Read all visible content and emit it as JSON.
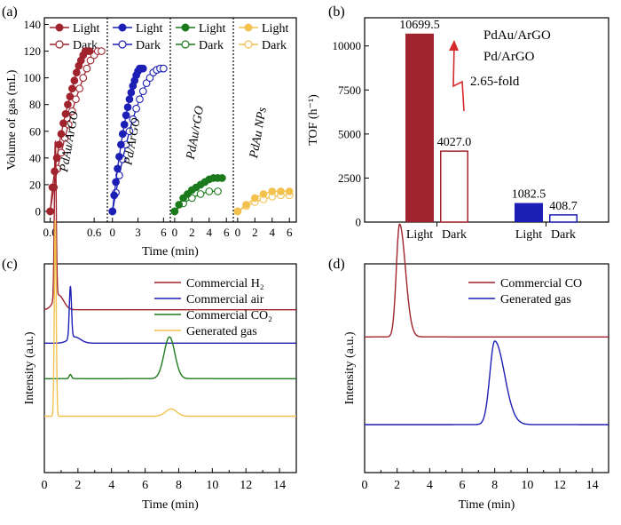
{
  "chart_data": [
    {
      "id": "a",
      "type": "scatter",
      "panel_label": "(a)",
      "ylabel": "Volume of gas (mL)",
      "xlabel": "Time (min)",
      "ylim": [
        -8,
        145
      ],
      "yticks": [
        0,
        20,
        40,
        60,
        80,
        100,
        120,
        140
      ],
      "subpanels": [
        {
          "name": "PdAu/ArGO",
          "xlim": [
            -0.08,
            0.78
          ],
          "xticks": [
            0.0,
            0.6
          ],
          "xtick_labels": [
            "0.0",
            "0.6"
          ],
          "color": "#a0232d",
          "legend": [
            "Light",
            "Dark"
          ],
          "light": {
            "x": [
              0,
              0.03,
              0.06,
              0.09,
              0.12,
              0.15,
              0.18,
              0.21,
              0.24,
              0.27,
              0.3,
              0.33,
              0.36,
              0.39,
              0.42,
              0.45,
              0.48,
              0.51,
              0.54
            ],
            "y": [
              0,
              18,
              30,
              40,
              50,
              58,
              66,
              73,
              80,
              86,
              92,
              98,
              104,
              109,
              113,
              117,
              120,
              120,
              120
            ]
          },
          "dark": {
            "x": [
              0,
              0.05,
              0.1,
              0.15,
              0.2,
              0.25,
              0.3,
              0.35,
              0.4,
              0.45,
              0.5,
              0.55,
              0.6,
              0.65,
              0.7
            ],
            "y": [
              0,
              18,
              32,
              44,
              55,
              65,
              75,
              84,
              92,
              100,
              107,
              113,
              117,
              120,
              120
            ]
          }
        },
        {
          "name": "Pd/ArGO",
          "xlim": [
            -0.6,
            6.8
          ],
          "xticks": [
            0,
            3,
            6
          ],
          "xtick_labels": [
            "0",
            "3",
            "6"
          ],
          "color": "#1c1fb5",
          "legend": [
            "Light",
            "Dark"
          ],
          "light": {
            "x": [
              0,
              0.2,
              0.4,
              0.6,
              0.8,
              1.0,
              1.2,
              1.4,
              1.6,
              1.8,
              2.0,
              2.2,
              2.4,
              2.6,
              2.8,
              3.0,
              3.2,
              3.4,
              3.6
            ],
            "y": [
              0,
              12,
              22,
              32,
              41,
              50,
              58,
              65,
              72,
              78,
              84,
              89,
              94,
              98,
              102,
              105,
              107,
              107,
              107
            ]
          },
          "dark": {
            "x": [
              0,
              0.4,
              0.8,
              1.2,
              1.6,
              2.0,
              2.4,
              2.8,
              3.2,
              3.6,
              4.0,
              4.4,
              4.8,
              5.2,
              5.6,
              6.0
            ],
            "y": [
              0,
              14,
              27,
              39,
              50,
              60,
              69,
              77,
              84,
              90,
              96,
              100,
              104,
              106,
              107,
              107
            ]
          }
        },
        {
          "name": "PdAu/rGO",
          "xlim": [
            -0.5,
            6.8
          ],
          "xticks": [
            0,
            2,
            4,
            6
          ],
          "xtick_labels": [
            "0",
            "2",
            "4",
            "6"
          ],
          "color": "#1b7a1b",
          "legend": [
            "Light",
            "Dark"
          ],
          "light": {
            "x": [
              0,
              0.5,
              1,
              1.5,
              2,
              2.5,
              3,
              3.5,
              4,
              4.5,
              5,
              5.5
            ],
            "y": [
              0,
              5,
              10,
              13,
              16,
              18,
              20,
              22,
              24,
              25,
              25,
              25
            ]
          },
          "dark": {
            "x": [
              0,
              1,
              2,
              3,
              4,
              5
            ],
            "y": [
              0,
              6,
              10,
              13,
              15,
              15
            ]
          }
        },
        {
          "name": "PdAu NPs",
          "xlim": [
            -0.5,
            6.8
          ],
          "xticks": [
            0,
            2,
            4,
            6
          ],
          "xtick_labels": [
            "0",
            "2",
            "4",
            "6"
          ],
          "color": "#f2c14e",
          "legend": [
            "Light",
            "Dark"
          ],
          "light": {
            "x": [
              0,
              1,
              2,
              3,
              4,
              5,
              6
            ],
            "y": [
              0,
              5,
              10,
              13,
              15,
              15,
              15
            ]
          },
          "dark": {
            "x": [
              0,
              1,
              2,
              3,
              4,
              5,
              6
            ],
            "y": [
              0,
              4,
              7,
              9,
              11,
              12,
              12
            ]
          }
        }
      ]
    },
    {
      "id": "b",
      "type": "bar",
      "panel_label": "(b)",
      "ylabel": "TOF (h⁻¹)",
      "ylim": [
        0,
        11600
      ],
      "yticks": [
        0,
        2500,
        5000,
        7500,
        10000
      ],
      "ytick_labels": [
        "0",
        "2500",
        "5000",
        "7500",
        "10000"
      ],
      "groups": [
        {
          "name": "PdAu/ArGO",
          "color": "#a0232d",
          "categories": [
            "Light",
            "Dark"
          ],
          "values": [
            10699.5,
            4027.0
          ],
          "labels": [
            "10699.5",
            "4027.0"
          ]
        },
        {
          "name": "Pd/ArGO",
          "color": "#1c1fb5",
          "categories": [
            "Light",
            "Dark"
          ],
          "values": [
            1082.5,
            408.7
          ],
          "labels": [
            "1082.5",
            "408.7"
          ]
        }
      ],
      "annotation": "2.65-fold"
    },
    {
      "id": "c",
      "type": "line",
      "panel_label": "(c)",
      "xlabel": "Time (min)",
      "ylabel": "Intensity (a.u.)",
      "xlim": [
        0,
        15
      ],
      "xticks": [
        0,
        2,
        4,
        6,
        8,
        10,
        12,
        14
      ],
      "series": [
        {
          "name": "Commercial H₂",
          "color": "#a0232d",
          "baseline": 0.22,
          "peaks": [
            {
              "t": 0.65,
              "h": 0.76,
              "w": 0.055
            },
            {
              "t": 0.85,
              "h": 0.07,
              "w": 0.3
            }
          ]
        },
        {
          "name": "Commercial air",
          "color": "#1c1fb5",
          "baseline": 0.38,
          "peaks": [
            {
              "t": 1.55,
              "h": 0.25,
              "w": 0.065
            },
            {
              "t": 1.8,
              "h": 0.03,
              "w": 0.35
            }
          ]
        },
        {
          "name": "Commercial CO₂",
          "color": "#1b7a1b",
          "baseline": 0.55,
          "peaks": [
            {
              "t": 1.55,
              "h": 0.02,
              "w": 0.07
            },
            {
              "t": 7.45,
              "h": 0.2,
              "w": 0.32
            }
          ]
        },
        {
          "name": "Generated gas",
          "color": "#f2c14e",
          "baseline": 0.73,
          "peaks": [
            {
              "t": 0.65,
              "h": 0.95,
              "w": 0.055
            },
            {
              "t": 7.55,
              "h": 0.035,
              "w": 0.33
            }
          ]
        }
      ]
    },
    {
      "id": "d",
      "type": "line",
      "panel_label": "(d)",
      "xlabel": "Time (min)",
      "ylabel": "Intensity (a.u.)",
      "xlim": [
        0,
        15
      ],
      "xticks": [
        0,
        2,
        4,
        6,
        8,
        10,
        12,
        14
      ],
      "series": [
        {
          "name": "Commercial CO",
          "color": "#a0232d",
          "baseline": 0.35,
          "peaks": [
            {
              "t": 2.15,
              "h": 0.54,
              "w": 0.2,
              "tail": 0.8
            }
          ]
        },
        {
          "name": "Generated gas",
          "color": "#1c1fb5",
          "baseline": 0.77,
          "peaks": [
            {
              "t": 8.0,
              "h": 0.4,
              "w": 0.3,
              "tail": 1.0
            }
          ]
        }
      ]
    }
  ]
}
